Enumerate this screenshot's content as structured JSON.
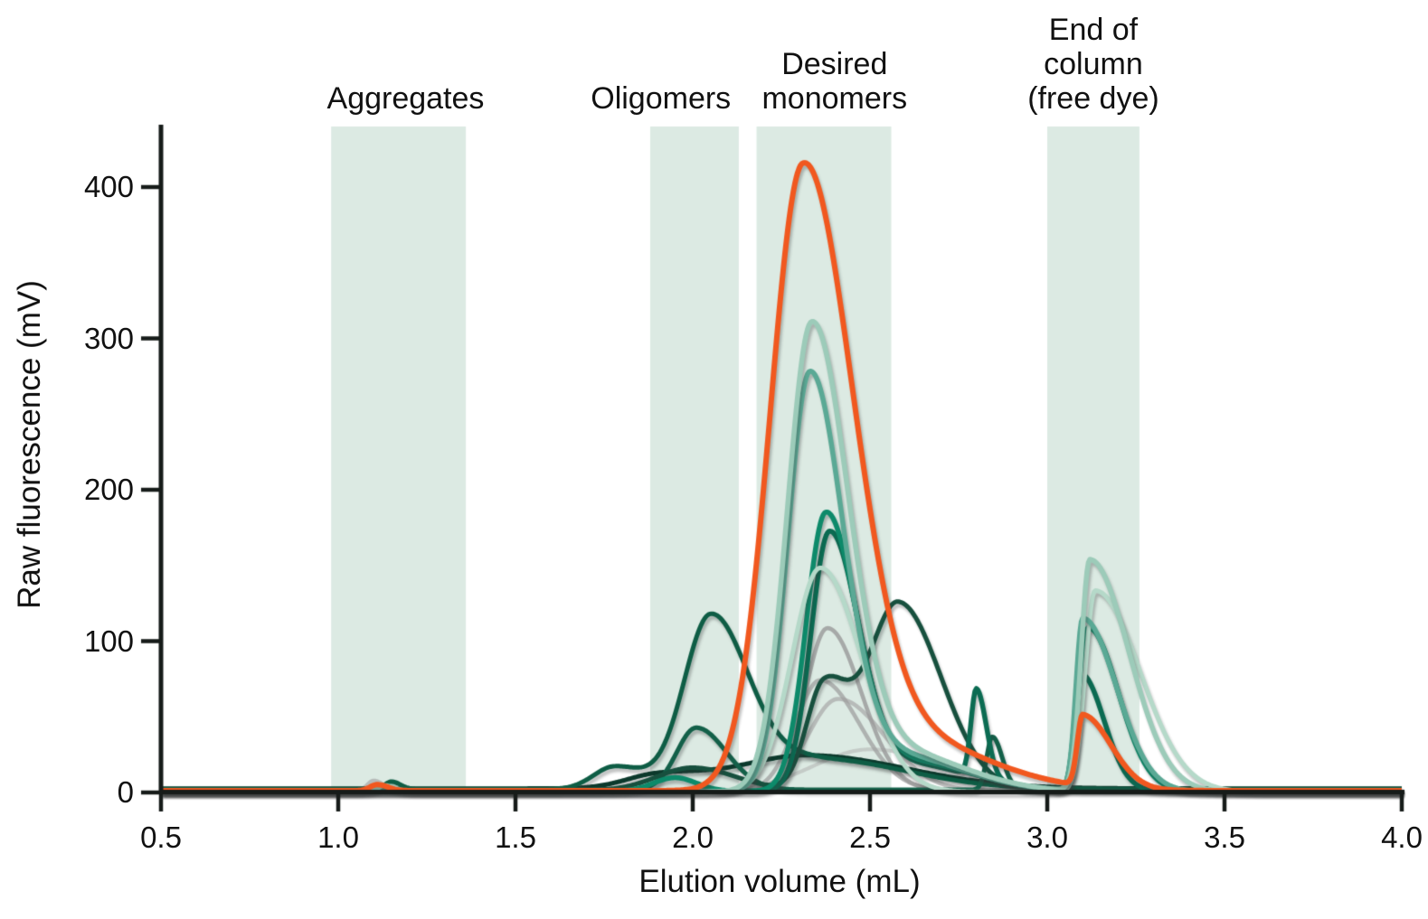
{
  "chart_data": {
    "type": "line",
    "title": "",
    "xlabel": "Elution volume (mL)",
    "ylabel": "Raw fluorescence (mV)",
    "xlim": [
      0.5,
      4.0
    ],
    "ylim": [
      0,
      440
    ],
    "grid": false,
    "legend": "none",
    "axis_color": "#161b19",
    "region_fill": "#dceae3",
    "x_ticks": [
      {
        "value": 0.5,
        "label": "0.5"
      },
      {
        "value": 1.0,
        "label": "1.0"
      },
      {
        "value": 1.5,
        "label": "1.5"
      },
      {
        "value": 2.0,
        "label": "2.0"
      },
      {
        "value": 2.5,
        "label": "2.5"
      },
      {
        "value": 3.0,
        "label": "3.0"
      },
      {
        "value": 3.5,
        "label": "3.5"
      },
      {
        "value": 4.0,
        "label": "4.0"
      }
    ],
    "y_ticks": [
      {
        "value": 0,
        "label": "0"
      },
      {
        "value": 100,
        "label": "100"
      },
      {
        "value": 200,
        "label": "200"
      },
      {
        "value": 300,
        "label": "300"
      },
      {
        "value": 400,
        "label": "400"
      }
    ],
    "regions": [
      {
        "label": "Aggregates",
        "label_lines": [
          "Aggregates"
        ],
        "x_start": 0.98,
        "x_end": 1.36,
        "label_center_mL": 1.19
      },
      {
        "label": "Oligomers",
        "label_lines": [
          "Oligomers"
        ],
        "x_start": 1.88,
        "x_end": 2.13,
        "label_center_mL": 1.91
      },
      {
        "label": "Desired monomers",
        "label_lines": [
          "Desired",
          "monomers"
        ],
        "x_start": 2.18,
        "x_end": 2.56,
        "label_center_mL": 2.4
      },
      {
        "label": "End of column (free dye)",
        "label_lines": [
          "End of",
          "column",
          "(free dye)"
        ],
        "x_start": 3.0,
        "x_end": 3.26,
        "label_center_mL": 3.13
      }
    ],
    "series": [
      {
        "name": "replicate-gray-broad",
        "color": "#ababab",
        "opacity": 0.5,
        "line_width": 4,
        "baseline_mV": 0.5,
        "peaks": [
          {
            "center_mL": 2.5,
            "height_mV": 28,
            "sigma_left": 0.16,
            "sigma_right": 0.22
          }
        ]
      },
      {
        "name": "replicate-gray-3",
        "color": "#a6a6a6",
        "opacity": 0.7,
        "line_width": 4.5,
        "baseline_mV": 0.8,
        "peaks": [
          {
            "center_mL": 2.41,
            "height_mV": 61,
            "sigma_left": 0.085,
            "sigma_right": 0.13
          },
          {
            "center_mL": 1.1,
            "height_mV": 7,
            "sigma_left": 0.018,
            "sigma_right": 0.028
          }
        ]
      },
      {
        "name": "replicate-gray-2",
        "color": "#9f9f9f",
        "opacity": 0.75,
        "line_width": 4.5,
        "baseline_mV": 1.2,
        "peaks": [
          {
            "center_mL": 2.36,
            "height_mV": 73,
            "sigma_left": 0.07,
            "sigma_right": 0.11
          }
        ]
      },
      {
        "name": "replicate-gray-1",
        "color": "#989898",
        "opacity": 0.8,
        "line_width": 4.5,
        "baseline_mV": 1.6,
        "peaks": [
          {
            "center_mL": 2.38,
            "height_mV": 107,
            "sigma_left": 0.062,
            "sigma_right": 0.095
          }
        ]
      },
      {
        "name": "replicate-darkest-broad",
        "color": "#0c392c",
        "opacity": 1,
        "line_width": 5,
        "baseline_mV": 2.6,
        "peaks": [
          {
            "center_mL": 2.32,
            "height_mV": 22,
            "sigma_left": 0.2,
            "sigma_right": 0.28
          },
          {
            "center_mL": 1.9,
            "height_mV": 8,
            "sigma_left": 0.09,
            "sigma_right": 0.12
          }
        ]
      },
      {
        "name": "replicate-darkgreen-a",
        "color": "#0e5d45",
        "opacity": 1,
        "line_width": 5,
        "baseline_mV": 2.2,
        "peaks": [
          {
            "center_mL": 2.05,
            "height_mV": 113,
            "sigma_left": 0.075,
            "sigma_right": 0.105
          },
          {
            "center_mL": 1.78,
            "height_mV": 15,
            "sigma_left": 0.06,
            "sigma_right": 0.09
          },
          {
            "center_mL": 2.35,
            "height_mV": 20,
            "sigma_left": 0.15,
            "sigma_right": 0.25
          },
          {
            "center_mL": 1.15,
            "height_mV": 5,
            "sigma_left": 0.018,
            "sigma_right": 0.025
          }
        ]
      },
      {
        "name": "replicate-darkgreen-b",
        "color": "#136049",
        "opacity": 1,
        "line_width": 5,
        "baseline_mV": 1.8,
        "peaks": [
          {
            "center_mL": 2.01,
            "height_mV": 41,
            "sigma_left": 0.055,
            "sigma_right": 0.085
          },
          {
            "center_mL": 2.845,
            "height_mV": 35,
            "sigma_left": 0.016,
            "sigma_right": 0.028
          }
        ]
      },
      {
        "name": "replicate-forest",
        "color": "#17503e",
        "opacity": 1,
        "line_width": 5,
        "baseline_mV": 1.4,
        "peaks": [
          {
            "center_mL": 2.58,
            "height_mV": 124,
            "sigma_left": 0.085,
            "sigma_right": 0.12
          },
          {
            "center_mL": 2.37,
            "height_mV": 68,
            "sigma_left": 0.05,
            "sigma_right": 0.07
          },
          {
            "center_mL": 2.0,
            "height_mV": 15,
            "sigma_left": 0.1,
            "sigma_right": 0.12
          }
        ]
      },
      {
        "name": "replicate-teal-dark",
        "color": "#0b6b52",
        "opacity": 1,
        "line_width": 5.5,
        "baseline_mV": 1.0,
        "peaks": [
          {
            "center_mL": 2.385,
            "height_mV": 168,
            "sigma_left": 0.052,
            "sigma_right": 0.082
          },
          {
            "center_mL": 2.6,
            "height_mV": 18,
            "sigma_left": 0.12,
            "sigma_right": 0.18
          },
          {
            "center_mL": 2.8,
            "height_mV": 58,
            "sigma_left": 0.015,
            "sigma_right": 0.028
          },
          {
            "center_mL": 3.095,
            "height_mV": 77,
            "sigma_left": 0.018,
            "sigma_right": 0.065
          }
        ]
      },
      {
        "name": "replicate-teal",
        "color": "#0d8a6a",
        "opacity": 1,
        "line_width": 5.5,
        "baseline_mV": 0.8,
        "peaks": [
          {
            "center_mL": 2.375,
            "height_mV": 181,
            "sigma_left": 0.055,
            "sigma_right": 0.085
          },
          {
            "center_mL": 2.6,
            "height_mV": 20,
            "sigma_left": 0.12,
            "sigma_right": 0.18
          },
          {
            "center_mL": 3.115,
            "height_mV": 108,
            "sigma_left": 0.02,
            "sigma_right": 0.085
          },
          {
            "center_mL": 1.95,
            "height_mV": 9,
            "sigma_left": 0.06,
            "sigma_right": 0.06
          }
        ]
      },
      {
        "name": "replicate-seafoam-pale",
        "color": "#b5d9c9",
        "opacity": 1,
        "line_width": 5,
        "baseline_mV": 0.4,
        "peaks": [
          {
            "center_mL": 2.36,
            "height_mV": 148,
            "sigma_left": 0.08,
            "sigma_right": 0.115
          },
          {
            "center_mL": 3.135,
            "height_mV": 133,
            "sigma_left": 0.028,
            "sigma_right": 0.125
          }
        ]
      },
      {
        "name": "replicate-seafoam-medium",
        "color": "#5aa995",
        "opacity": 1,
        "line_width": 5.5,
        "baseline_mV": 0.6,
        "peaks": [
          {
            "center_mL": 2.33,
            "height_mV": 273,
            "sigma_left": 0.062,
            "sigma_right": 0.092
          },
          {
            "center_mL": 2.55,
            "height_mV": 25,
            "sigma_left": 0.12,
            "sigma_right": 0.2
          },
          {
            "center_mL": 3.1,
            "height_mV": 114,
            "sigma_left": 0.019,
            "sigma_right": 0.095
          }
        ]
      },
      {
        "name": "replicate-seafoam-light",
        "color": "#9ccbb9",
        "opacity": 1,
        "line_width": 5.5,
        "baseline_mV": 0.5,
        "peaks": [
          {
            "center_mL": 2.335,
            "height_mV": 305,
            "sigma_left": 0.068,
            "sigma_right": 0.1
          },
          {
            "center_mL": 2.55,
            "height_mV": 28,
            "sigma_left": 0.12,
            "sigma_right": 0.2
          },
          {
            "center_mL": 3.12,
            "height_mV": 153,
            "sigma_left": 0.024,
            "sigma_right": 0.11
          },
          {
            "center_mL": 1.13,
            "height_mV": 4,
            "sigma_left": 0.02,
            "sigma_right": 0.03
          }
        ]
      },
      {
        "name": "highlight-orange",
        "color": "#f1581f",
        "opacity": 1,
        "line_width": 6,
        "baseline_mV": 1.2,
        "peaks": [
          {
            "center_mL": 2.31,
            "height_mV": 404,
            "sigma_left": 0.092,
            "sigma_right": 0.135
          },
          {
            "center_mL": 2.55,
            "height_mV": 38,
            "sigma_left": 0.15,
            "sigma_right": 0.25
          },
          {
            "center_mL": 3.1,
            "height_mV": 47,
            "sigma_left": 0.015,
            "sigma_right": 0.08
          },
          {
            "center_mL": 1.11,
            "height_mV": 4,
            "sigma_left": 0.02,
            "sigma_right": 0.03
          }
        ]
      }
    ]
  }
}
